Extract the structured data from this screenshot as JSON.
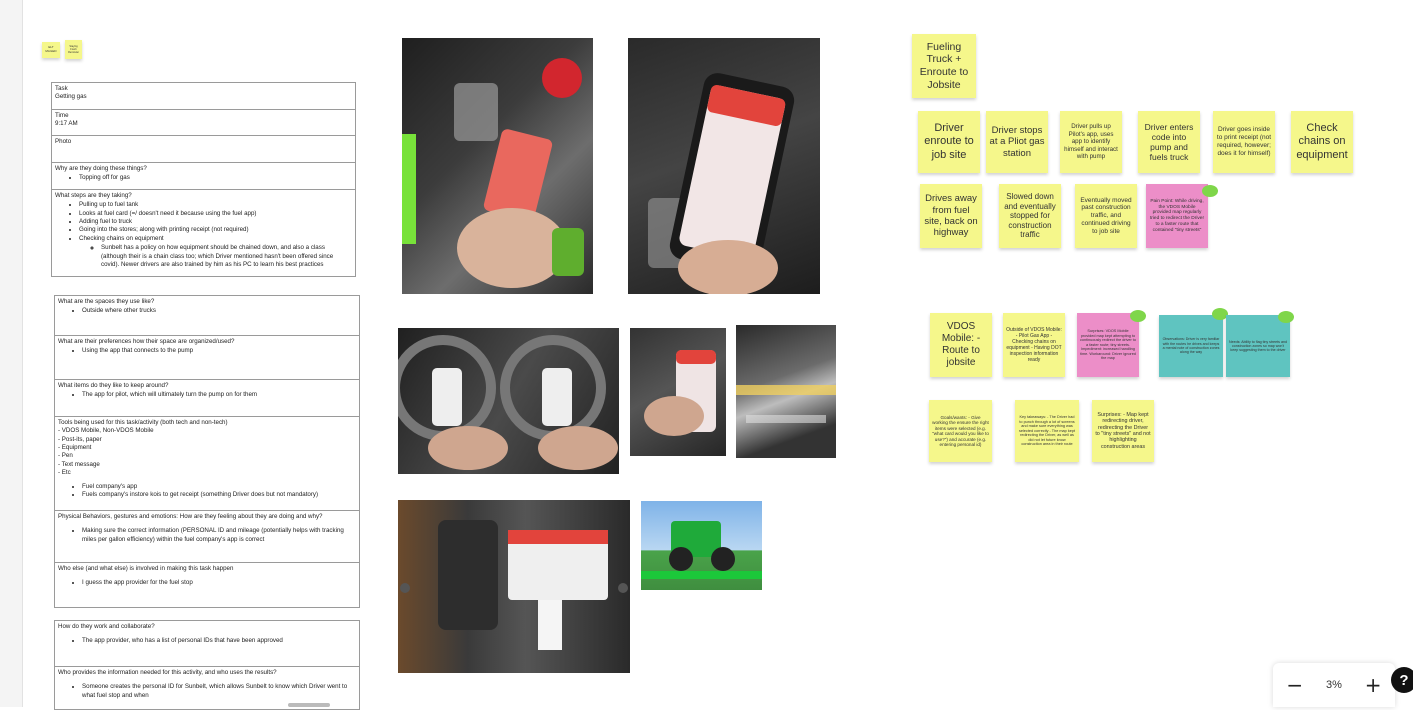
{
  "mini_stickies": [
    "ELT MAILED",
    "Staying Fresh Reminder"
  ],
  "doc1": {
    "task_label": "Task",
    "task_value": "Getting gas",
    "time_label": "Time",
    "time_value": "9:17 AM",
    "photo_label": "Photo",
    "why_q": "Why are they doing these things?",
    "why_items": [
      "Topping off for gas"
    ],
    "steps_q": "What steps are they taking?",
    "steps_items": [
      "Pulling up to fuel tank",
      "Looks at fuel card (=/ doesn't need it because using the fuel app)",
      "Adding fuel to truck",
      "Going into the stores; along with printing receipt (not required)",
      "Checking chains on equipment"
    ],
    "steps_sub": "Sunbelt has a policy on how equipment should be chained down, and also a class (although their is a chain class too; which Driver mentioned hasn't been offered since covid). Newer drivers are also trained by him as his PC to learn his best practices"
  },
  "doc2": {
    "spaces_q": "What are the spaces they use like?",
    "spaces_items": [
      "Outside where other trucks"
    ],
    "prefs_q": "What are their preferences how their space are organized/used?",
    "prefs_items": [
      "Using the app that connects to the pump"
    ],
    "keep_q": "What items do they like to keep around?",
    "keep_items": [
      "The app for pilot, which will ultimately turn the pump on for them"
    ],
    "tools_q": "Tools being used for this task/activity (both tech and non-tech)",
    "tools_lines": [
      "- VDOS Mobile, Non-VDOS Mobile",
      "- Post-its, paper",
      "- Equipment",
      "- Pen",
      "- Text message",
      "- Etc"
    ],
    "tools_items": [
      "Fuel company's app",
      "Fuels company's instore kois to get receipt (something Driver does but not mandatory)"
    ],
    "phys_q": "Physical Behaviors, gestures and emotions: How are they feeling about they are doing and why?",
    "phys_items": [
      "Making sure the correct information (PERSONAL ID and mileage (potentially helps with tracking miles per gallon efficiency) within the fuel company's app is correct"
    ],
    "who_q": "Who else (and what else) is involved in making this task happen",
    "who_items": [
      "I guess the app provider for the fuel stop"
    ]
  },
  "doc3": {
    "collab_q": "How do they work and collaborate?",
    "collab_items": [
      "The app provider, who has a list of personal IDs that have been approved"
    ],
    "info_q": "Who provides the information needed for this activity, and who uses the results?",
    "info_items": [
      "Someone creates the personal ID for Sunbelt, which allows Sunbelt to know which Driver went to what fuel stop and when"
    ]
  },
  "stickies_top": {
    "title": "Fueling Truck + Enroute to Jobsite",
    "row1": [
      "Driver enroute to job site",
      "Driver stops at a Pliot gas station",
      "Driver pulls up Pilot's app, uses app to identify himself and interact with pump",
      "Driver enters code into pump and fuels truck",
      "Driver goes inside to print receipt (not required, however; does it for himself)",
      "Check chains on equipment"
    ],
    "row2": [
      "Drives away from fuel site, back on highway",
      "Slowed down and eventually stopped for construction traffic",
      "Eventually moved past construction traffic, and continued driving to job site"
    ],
    "pain": "Pain Point: While driving, the VDOS Mobile provided map regularly tried to redirect the Driver to a faster route that contained \"tiny streets\""
  },
  "stickies_bottom": {
    "title": "VDOS Mobile: - Route to jobsite",
    "a": "Outside of VDOS Mobile: - Pilot Gas App - Checking chains on equipment - Having DOT inspection information ready",
    "pink": "Surprises: VDOS Mobile provided map kept attempting to continuously redirect the driver to a faster route; tiny streets. Impediment: increased handling time. Workaround: Driver ignored the map",
    "teal1": "Observations: Driver is very familiar with the routes he drives and keeps a mental note of construction zones along the way",
    "teal2": "Needs: Ability to flag tiny streets and construction zones so map won't keep suggesting them to the driver",
    "b": "Goals/wants: - Give working the ensure the right items were selected (e.g. \"what card would you like to use?\") and accurate (e.g. entering personal id)",
    "c": "Key takeaways: - The Driver had to punch through a lot of screens and make sure everything was selected correctly - The map kept redirecting the Driver, as well as did not let future know construction area in their route",
    "d": "Surprises: - Map kept redirecting driver, redirecting the Driver to \"tiny streets\" and not highlighting construction areas"
  },
  "zoom": {
    "minus": "−",
    "value": "3%",
    "plus": "+",
    "help": "?"
  }
}
